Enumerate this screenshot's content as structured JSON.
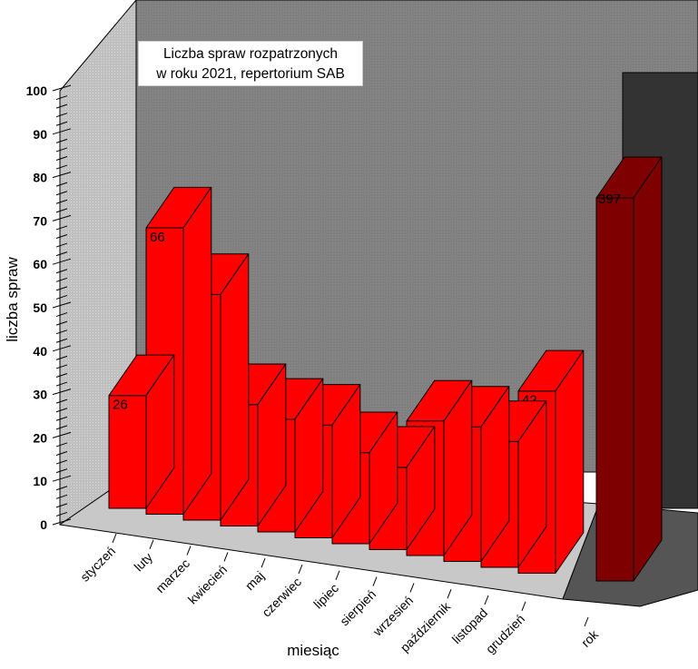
{
  "chart_data": {
    "type": "bar",
    "title_lines": [
      "Liczba spraw rozpatrzonych",
      "w roku 2021, repertorium SAB"
    ],
    "xlabel": "miesiąc",
    "ylabel": "liczba spraw",
    "ylim": [
      0,
      100
    ],
    "yticks": [
      0,
      10,
      20,
      30,
      40,
      50,
      60,
      70,
      80,
      90,
      100
    ],
    "categories": [
      "styczeń",
      "luty",
      "marzec",
      "kwiecień",
      "maj",
      "czerwiec",
      "lipiec",
      "sierpień",
      "wrzesień",
      "październik",
      "listopad",
      "grudzień"
    ],
    "values": [
      26,
      66,
      52,
      28,
      26,
      26,
      21,
      19,
      31,
      31,
      29,
      42
    ],
    "total": {
      "label": "rok",
      "value": 397
    },
    "grid": false,
    "style": "3d",
    "colors": {
      "bar_front": "#ff0000",
      "bar_side": "#ff1a1a",
      "total_front": "#7f0000",
      "wall": "#808080",
      "side_wall": "#c8c8c8",
      "floor": "#c8c8c8",
      "total_wall": "#333333",
      "total_floor": "#555555"
    }
  }
}
